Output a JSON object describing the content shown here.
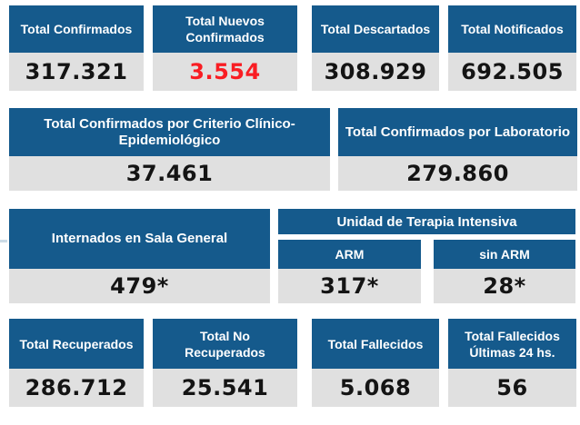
{
  "colors": {
    "header_bg": "#155a8c",
    "value_bg": "#e0e0e0",
    "header_text": "#ffffff",
    "value_text": "#141414",
    "highlight_text": "#f91d23",
    "page_bg": "#ffffff"
  },
  "row1": [
    {
      "label": "Total Confirmados",
      "value": "317.321"
    },
    {
      "label": "Total Nuevos Confirmados",
      "value": "3.554"
    },
    {
      "label": "Total Descartados",
      "value": "308.929"
    },
    {
      "label": "Total Notificados",
      "value": "692.505"
    }
  ],
  "row2": [
    {
      "label": "Total Confirmados por Criterio Clínico-Epidemiológico",
      "value": "37.461"
    },
    {
      "label": "Total Confirmados por Laboratorio",
      "value": "279.860"
    }
  ],
  "row3": {
    "sala_general": {
      "label": "Internados en Sala General",
      "value": "479*"
    },
    "uti": {
      "title": "Unidad de Terapia Intensiva",
      "arm": {
        "label": "ARM",
        "value": "317*"
      },
      "sin_arm": {
        "label": "sin ARM",
        "value": "28*"
      }
    }
  },
  "row4": [
    {
      "label": "Total Recuperados",
      "value": "286.712"
    },
    {
      "label": "Total No Recuperados",
      "value": "25.541"
    },
    {
      "label": "Total Fallecidos",
      "value": "5.068"
    },
    {
      "label": "Total Fallecidos Últimas 24 hs.",
      "value": "56"
    }
  ]
}
